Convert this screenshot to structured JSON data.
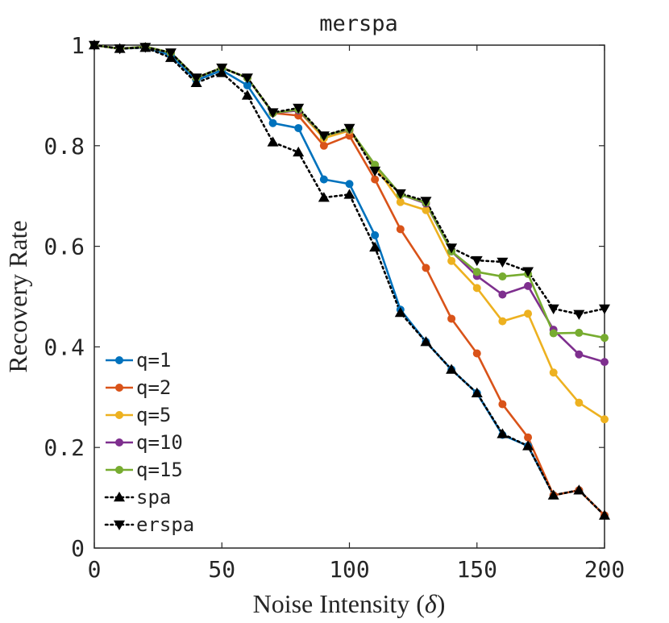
{
  "chart_data": {
    "type": "line",
    "title": "merspa",
    "xlabel": "Noise Intensity (δ)",
    "xlabel_text": "Noise Intensity (",
    "xlabel_symbol": "δ",
    "xlabel_close": ")",
    "ylabel": "Recovery Rate",
    "xlim": [
      0,
      200
    ],
    "ylim": [
      0,
      1
    ],
    "xticks": [
      0,
      50,
      100,
      150,
      200
    ],
    "xtick_labels": [
      "0",
      "50",
      "100",
      "150",
      "200"
    ],
    "yticks": [
      0,
      0.2,
      0.4,
      0.6,
      0.8,
      1
    ],
    "ytick_labels": [
      "0",
      "0.2",
      "0.4",
      "0.6",
      "0.8",
      "1"
    ],
    "grid": false,
    "legend_position": "bottom-left",
    "x": [
      0,
      10,
      20,
      30,
      40,
      50,
      60,
      70,
      80,
      90,
      100,
      110,
      120,
      130,
      140,
      150,
      160,
      170,
      180,
      190,
      200
    ],
    "series": [
      {
        "name": "q=1",
        "color": "#0072BD",
        "style": "solid",
        "marker": "circle",
        "values": [
          1.0,
          0.993,
          0.995,
          0.98,
          0.93,
          0.95,
          0.92,
          0.845,
          0.835,
          0.733,
          0.724,
          0.622,
          0.474,
          0.41,
          0.355,
          0.308,
          0.225,
          0.203,
          0.105,
          0.115,
          0.065
        ]
      },
      {
        "name": "q=2",
        "color": "#D95319",
        "style": "solid",
        "marker": "circle",
        "values": [
          1.0,
          0.993,
          0.996,
          0.985,
          0.935,
          0.955,
          0.935,
          0.865,
          0.86,
          0.8,
          0.82,
          0.733,
          0.634,
          0.557,
          0.456,
          0.387,
          0.286,
          0.22,
          0.105,
          0.115,
          0.065
        ]
      },
      {
        "name": "q=5",
        "color": "#EDB120",
        "style": "solid",
        "marker": "circle",
        "values": [
          1.0,
          0.993,
          0.997,
          0.985,
          0.935,
          0.955,
          0.935,
          0.865,
          0.87,
          0.815,
          0.83,
          0.76,
          0.688,
          0.672,
          0.571,
          0.517,
          0.451,
          0.466,
          0.349,
          0.289,
          0.256
        ]
      },
      {
        "name": "q=10",
        "color": "#7E2F8E",
        "style": "solid",
        "marker": "circle",
        "values": [
          1.0,
          0.993,
          0.997,
          0.985,
          0.935,
          0.955,
          0.935,
          0.865,
          0.87,
          0.82,
          0.832,
          0.762,
          0.703,
          0.685,
          0.59,
          0.541,
          0.504,
          0.521,
          0.434,
          0.385,
          0.37
        ]
      },
      {
        "name": "q=15",
        "color": "#77AC30",
        "style": "solid",
        "marker": "circle",
        "values": [
          1.0,
          0.993,
          0.997,
          0.985,
          0.935,
          0.955,
          0.935,
          0.865,
          0.872,
          0.82,
          0.833,
          0.762,
          0.703,
          0.687,
          0.59,
          0.549,
          0.54,
          0.545,
          0.427,
          0.428,
          0.418
        ]
      },
      {
        "name": "spa",
        "color": "#000000",
        "style": "dotted",
        "marker": "triangle-up",
        "values": [
          1.0,
          0.993,
          0.995,
          0.975,
          0.925,
          0.945,
          0.9,
          0.807,
          0.787,
          0.697,
          0.703,
          0.598,
          0.468,
          0.41,
          0.355,
          0.308,
          0.227,
          0.203,
          0.105,
          0.115,
          0.065
        ]
      },
      {
        "name": "erspa",
        "color": "#000000",
        "style": "dotted",
        "marker": "triangle-down",
        "values": [
          1.0,
          0.993,
          0.996,
          0.985,
          0.935,
          0.955,
          0.935,
          0.866,
          0.875,
          0.82,
          0.835,
          0.75,
          0.705,
          0.69,
          0.597,
          0.572,
          0.569,
          0.55,
          0.476,
          0.465,
          0.476
        ]
      }
    ]
  }
}
